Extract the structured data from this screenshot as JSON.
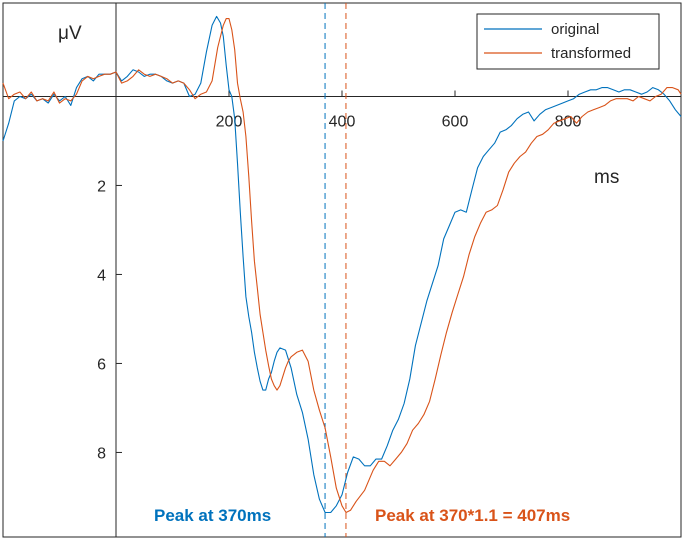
{
  "chart_data": {
    "type": "line",
    "x_unit": "ms",
    "y_unit": "μV",
    "xlim": [
      -200,
      1000
    ],
    "ylim": [
      9.9,
      -2.1
    ],
    "y_inverted": true,
    "x_ticks": [
      200,
      400,
      600,
      800
    ],
    "y_ticks": [
      2,
      4,
      6,
      8
    ],
    "grid": false,
    "legend_position": "top-right",
    "series": [
      {
        "name": "original",
        "color": "#0072BD",
        "points": [
          [
            -200,
            1
          ],
          [
            -190,
            0.6
          ],
          [
            -180,
            0.1
          ],
          [
            -170,
            0
          ],
          [
            -160,
            0.05
          ],
          [
            -150,
            -0.05
          ],
          [
            -140,
            0.1
          ],
          [
            -130,
            0.05
          ],
          [
            -120,
            0.15
          ],
          [
            -110,
            -0.05
          ],
          [
            -100,
            0.1
          ],
          [
            -90,
            0
          ],
          [
            -80,
            0.2
          ],
          [
            -70,
            -0.2
          ],
          [
            -60,
            -0.4
          ],
          [
            -50,
            -0.45
          ],
          [
            -40,
            -0.35
          ],
          [
            -30,
            -0.5
          ],
          [
            -20,
            -0.5
          ],
          [
            -10,
            -0.5
          ],
          [
            0,
            -0.55
          ],
          [
            10,
            -0.35
          ],
          [
            20,
            -0.45
          ],
          [
            30,
            -0.6
          ],
          [
            40,
            -0.55
          ],
          [
            50,
            -0.45
          ],
          [
            60,
            -0.5
          ],
          [
            70,
            -0.5
          ],
          [
            80,
            -0.45
          ],
          [
            90,
            -0.35
          ],
          [
            100,
            -0.3
          ],
          [
            110,
            -0.35
          ],
          [
            120,
            -0.3
          ],
          [
            130,
            0
          ],
          [
            140,
            -0.05
          ],
          [
            150,
            -0.3
          ],
          [
            160,
            -1
          ],
          [
            170,
            -1.6
          ],
          [
            178,
            -1.8
          ],
          [
            185,
            -1.65
          ],
          [
            190,
            -1.35
          ],
          [
            195,
            -0.7
          ],
          [
            200,
            -0.15
          ],
          [
            205,
            0
          ],
          [
            210,
            0.5
          ],
          [
            215,
            1.5
          ],
          [
            220,
            2.6
          ],
          [
            225,
            3.6
          ],
          [
            230,
            4.5
          ],
          [
            235,
            4.95
          ],
          [
            240,
            5.3
          ],
          [
            245,
            5.75
          ],
          [
            250,
            6.1
          ],
          [
            255,
            6.4
          ],
          [
            260,
            6.6
          ],
          [
            265,
            6.6
          ],
          [
            270,
            6.35
          ],
          [
            275,
            6.2
          ],
          [
            280,
            5.95
          ],
          [
            285,
            5.75
          ],
          [
            290,
            5.65
          ],
          [
            300,
            5.7
          ],
          [
            310,
            6.1
          ],
          [
            320,
            6.7
          ],
          [
            330,
            7.1
          ],
          [
            340,
            7.7
          ],
          [
            350,
            8.5
          ],
          [
            360,
            9.05
          ],
          [
            370,
            9.35
          ],
          [
            380,
            9.35
          ],
          [
            390,
            9.2
          ],
          [
            400,
            8.95
          ],
          [
            410,
            8.45
          ],
          [
            420,
            8.1
          ],
          [
            430,
            8.15
          ],
          [
            440,
            8.3
          ],
          [
            450,
            8.3
          ],
          [
            460,
            8.15
          ],
          [
            470,
            8.15
          ],
          [
            480,
            7.85
          ],
          [
            490,
            7.5
          ],
          [
            500,
            7.25
          ],
          [
            510,
            6.9
          ],
          [
            520,
            6.35
          ],
          [
            530,
            5.6
          ],
          [
            540,
            5.1
          ],
          [
            550,
            4.6
          ],
          [
            560,
            4.2
          ],
          [
            570,
            3.8
          ],
          [
            580,
            3.2
          ],
          [
            590,
            2.9
          ],
          [
            600,
            2.6
          ],
          [
            610,
            2.55
          ],
          [
            620,
            2.6
          ],
          [
            630,
            2.1
          ],
          [
            640,
            1.6
          ],
          [
            650,
            1.35
          ],
          [
            660,
            1.2
          ],
          [
            670,
            1.05
          ],
          [
            680,
            0.8
          ],
          [
            690,
            0.75
          ],
          [
            700,
            0.65
          ],
          [
            710,
            0.5
          ],
          [
            720,
            0.4
          ],
          [
            730,
            0.35
          ],
          [
            740,
            0.55
          ],
          [
            750,
            0.4
          ],
          [
            760,
            0.3
          ],
          [
            770,
            0.25
          ],
          [
            780,
            0.2
          ],
          [
            790,
            0.15
          ],
          [
            800,
            0.1
          ],
          [
            810,
            0.05
          ],
          [
            820,
            -0.05
          ],
          [
            830,
            -0.1
          ],
          [
            840,
            -0.15
          ],
          [
            850,
            -0.15
          ],
          [
            860,
            -0.2
          ],
          [
            870,
            -0.2
          ],
          [
            880,
            -0.15
          ],
          [
            890,
            -0.1
          ],
          [
            900,
            -0.15
          ],
          [
            910,
            -0.15
          ],
          [
            920,
            -0.1
          ],
          [
            930,
            -0.05
          ],
          [
            940,
            -0.1
          ],
          [
            950,
            -0.2
          ],
          [
            960,
            -0.15
          ],
          [
            970,
            -0.05
          ],
          [
            980,
            0.1
          ],
          [
            990,
            0.3
          ],
          [
            1000,
            0.45
          ]
        ]
      },
      {
        "name": "transformed",
        "color": "#D95319",
        "points": [
          [
            -200,
            -0.3
          ],
          [
            -190,
            0.05
          ],
          [
            -180,
            -0.05
          ],
          [
            -170,
            -0.1
          ],
          [
            -160,
            0.05
          ],
          [
            -150,
            -0.1
          ],
          [
            -140,
            0.1
          ],
          [
            -130,
            0.05
          ],
          [
            -120,
            0.1
          ],
          [
            -110,
            -0.1
          ],
          [
            -100,
            0.15
          ],
          [
            -90,
            0.05
          ],
          [
            -80,
            0.1
          ],
          [
            -70,
            -0.05
          ],
          [
            -60,
            -0.35
          ],
          [
            -50,
            -0.45
          ],
          [
            -40,
            -0.4
          ],
          [
            -30,
            -0.45
          ],
          [
            -20,
            -0.5
          ],
          [
            -10,
            -0.5
          ],
          [
            0,
            -0.55
          ],
          [
            10,
            -0.3
          ],
          [
            20,
            -0.35
          ],
          [
            30,
            -0.45
          ],
          [
            40,
            -0.6
          ],
          [
            50,
            -0.5
          ],
          [
            60,
            -0.45
          ],
          [
            70,
            -0.5
          ],
          [
            80,
            -0.45
          ],
          [
            90,
            -0.4
          ],
          [
            100,
            -0.3
          ],
          [
            110,
            -0.35
          ],
          [
            120,
            -0.3
          ],
          [
            130,
            -0.15
          ],
          [
            140,
            0.05
          ],
          [
            150,
            -0.05
          ],
          [
            160,
            -0.1
          ],
          [
            170,
            -0.35
          ],
          [
            180,
            -1.1
          ],
          [
            190,
            -1.6
          ],
          [
            195,
            -1.75
          ],
          [
            200,
            -1.75
          ],
          [
            205,
            -1.5
          ],
          [
            210,
            -1.05
          ],
          [
            215,
            -0.3
          ],
          [
            220,
            0.05
          ],
          [
            225,
            0.35
          ],
          [
            230,
            0.9
          ],
          [
            235,
            1.8
          ],
          [
            240,
            2.8
          ],
          [
            245,
            3.7
          ],
          [
            250,
            4.3
          ],
          [
            255,
            4.9
          ],
          [
            260,
            5.3
          ],
          [
            265,
            5.7
          ],
          [
            270,
            6.05
          ],
          [
            275,
            6.35
          ],
          [
            280,
            6.5
          ],
          [
            285,
            6.6
          ],
          [
            290,
            6.5
          ],
          [
            295,
            6.3
          ],
          [
            300,
            6.1
          ],
          [
            305,
            5.95
          ],
          [
            310,
            5.85
          ],
          [
            315,
            5.8
          ],
          [
            320,
            5.75
          ],
          [
            330,
            5.7
          ],
          [
            340,
            5.95
          ],
          [
            350,
            6.6
          ],
          [
            360,
            7.05
          ],
          [
            370,
            7.45
          ],
          [
            380,
            8.1
          ],
          [
            390,
            8.8
          ],
          [
            400,
            9.2
          ],
          [
            407,
            9.35
          ],
          [
            415,
            9.3
          ],
          [
            425,
            9.1
          ],
          [
            440,
            8.85
          ],
          [
            455,
            8.4
          ],
          [
            465,
            8.2
          ],
          [
            475,
            8.2
          ],
          [
            485,
            8.3
          ],
          [
            495,
            8.15
          ],
          [
            505,
            8
          ],
          [
            515,
            7.8
          ],
          [
            525,
            7.5
          ],
          [
            535,
            7.35
          ],
          [
            545,
            7.15
          ],
          [
            555,
            6.85
          ],
          [
            565,
            6.35
          ],
          [
            575,
            5.8
          ],
          [
            585,
            5.3
          ],
          [
            595,
            4.85
          ],
          [
            605,
            4.45
          ],
          [
            615,
            4.05
          ],
          [
            625,
            3.55
          ],
          [
            635,
            3.15
          ],
          [
            645,
            2.85
          ],
          [
            655,
            2.6
          ],
          [
            665,
            2.55
          ],
          [
            675,
            2.45
          ],
          [
            685,
            2.1
          ],
          [
            695,
            1.7
          ],
          [
            705,
            1.5
          ],
          [
            715,
            1.35
          ],
          [
            725,
            1.25
          ],
          [
            735,
            1.05
          ],
          [
            745,
            0.9
          ],
          [
            755,
            0.85
          ],
          [
            765,
            0.75
          ],
          [
            775,
            0.6
          ],
          [
            785,
            0.55
          ],
          [
            795,
            0.5
          ],
          [
            805,
            0.45
          ],
          [
            815,
            0.6
          ],
          [
            825,
            0.45
          ],
          [
            835,
            0.35
          ],
          [
            845,
            0.3
          ],
          [
            855,
            0.25
          ],
          [
            865,
            0.2
          ],
          [
            875,
            0.1
          ],
          [
            885,
            0.05
          ],
          [
            895,
            0.05
          ],
          [
            905,
            0.05
          ],
          [
            915,
            0.1
          ],
          [
            925,
            0
          ],
          [
            935,
            0.05
          ],
          [
            945,
            0.1
          ],
          [
            955,
            0
          ],
          [
            965,
            -0.05
          ],
          [
            975,
            -0.2
          ],
          [
            985,
            -0.2
          ],
          [
            995,
            -0.15
          ],
          [
            1000,
            -0.05
          ]
        ]
      }
    ],
    "peak_lines": [
      {
        "x": 370,
        "color": "#0072BD",
        "style": "dashed"
      },
      {
        "x": 407,
        "color": "#D95319",
        "style": "dashed"
      }
    ],
    "annotations": [
      {
        "text": "Peak at 370ms",
        "color": "#0072BD"
      },
      {
        "text": "Peak at 370*1.1 = 407ms",
        "color": "#D95319"
      }
    ]
  }
}
